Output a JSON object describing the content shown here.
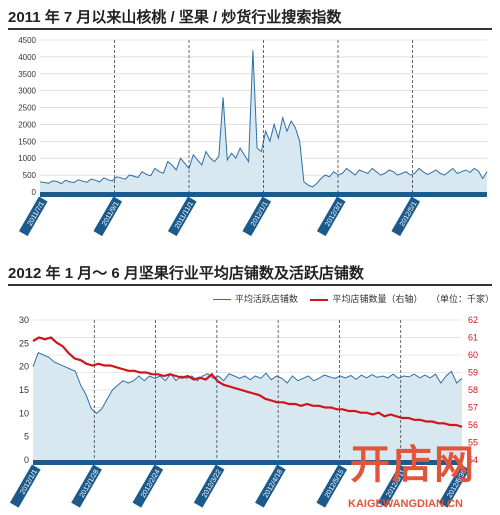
{
  "titles": {
    "chart1": "2011 年 7 月以来山核桃 / 坚果 / 炒货行业搜索指数",
    "chart2": "2012 年 1 月～ 6 月坚果行业平均店铺数及活跃店铺数"
  },
  "legend": {
    "series1": "平均活跃店铺数",
    "series2": "平均店铺数量（右轴）",
    "unit": "（单位：千家）"
  },
  "watermark": {
    "logo": "开店网",
    "url": "KAIGEWANGDIAN.CN"
  },
  "colors": {
    "blue": "#2f6fa5",
    "fill": "#d8e8f0",
    "red": "#d0141c",
    "grid": "#cfcfcf"
  },
  "chart_data": [
    {
      "type": "area",
      "title": "2011 年 7 月以来山核桃 / 坚果 / 炒货行业搜索指数",
      "x_tick_labels": [
        "2011/7/1",
        "2011/9/1",
        "2011/11/1",
        "2012/1/1",
        "2012/3/1",
        "2012/5/1"
      ],
      "y_tick_labels": [
        "0",
        "500",
        "1000",
        "1500",
        "2000",
        "2500",
        "3000",
        "3500",
        "4000",
        "4500"
      ],
      "ylim": [
        0,
        4500
      ],
      "grid": "horizontal",
      "series": [
        {
          "values": [
            300,
            280,
            260,
            330,
            310,
            250,
            350,
            300,
            280,
            360,
            320,
            290,
            380,
            350,
            300,
            420,
            360,
            330,
            450,
            420,
            380,
            500,
            470,
            430,
            600,
            520,
            480,
            700,
            600,
            560,
            900,
            800,
            650,
            1000,
            850,
            700,
            1100,
            950,
            800,
            1200,
            1000,
            900,
            1050,
            2800,
            950,
            1150,
            1000,
            1300,
            1100,
            900,
            4200,
            1300,
            1200,
            1800,
            1500,
            2000,
            1600,
            2200,
            1800,
            2100,
            1900,
            1500,
            300,
            200,
            150,
            250,
            400,
            500,
            450,
            600,
            500,
            550,
            700,
            600,
            500,
            650,
            600,
            550,
            700,
            600,
            500,
            550,
            650,
            600,
            500,
            550,
            600,
            500,
            550,
            700,
            600,
            520,
            580,
            650,
            550,
            500,
            600,
            700,
            550,
            600,
            650,
            580,
            700,
            620,
            400,
            600
          ]
        }
      ]
    },
    {
      "type": "line",
      "title": "2012 年 1 月～ 6 月坚果行业平均店铺数及活跃店铺数",
      "x_tick_labels": [
        "2012/1/1",
        "2012/1/28",
        "2012/2/24",
        "2012/3/22",
        "2012/4/18",
        "2012/5/15",
        "2012/6/11",
        "2012/6/30"
      ],
      "y_tick_labels": [
        "0",
        "5",
        "10",
        "15",
        "20",
        "25",
        "30"
      ],
      "y2_tick_labels": [
        "54",
        "55",
        "56",
        "57",
        "58",
        "59",
        "60",
        "61",
        "62"
      ],
      "ylim": [
        0,
        30
      ],
      "y2lim": [
        54,
        62
      ],
      "grid": "horizontal",
      "series": [
        {
          "name": "平均活跃店铺数",
          "axis": "left",
          "values": [
            20,
            23,
            22.5,
            22,
            21,
            20.5,
            20,
            19.5,
            19,
            16,
            14,
            11,
            10,
            11,
            13,
            15,
            16,
            17,
            16.5,
            17,
            18,
            17,
            18,
            17.5,
            18,
            17,
            18.5,
            17,
            18,
            17.5,
            18,
            17,
            18,
            18.5,
            17.5,
            18,
            17,
            18.5,
            18,
            17.5,
            18,
            17.2,
            18,
            17.5,
            18.6,
            17.2,
            18,
            17.5,
            16.5,
            18,
            17,
            17.5,
            18,
            17,
            17.5,
            18.2,
            17.8,
            17.5,
            18,
            17.6,
            18.1,
            17.3,
            18.2,
            17.6,
            18.3,
            17.7,
            18,
            17.6,
            18.4,
            17.5,
            18,
            17.8,
            18.4,
            17.6,
            18.2,
            17.6,
            18.4,
            16.5,
            18,
            19,
            16.5,
            17.5
          ]
        },
        {
          "name": "平均店铺数量（右轴）",
          "axis": "right",
          "values": [
            60.8,
            61,
            60.9,
            61,
            60.7,
            60.5,
            60.1,
            59.8,
            59.7,
            59.5,
            59.4,
            59.5,
            59.4,
            59.4,
            59.3,
            59.2,
            59.1,
            59.1,
            59.0,
            59.0,
            58.9,
            58.9,
            58.8,
            58.9,
            58.8,
            58.7,
            58.8,
            58.6,
            58.7,
            58.6,
            58.9,
            58.5,
            58.3,
            58.2,
            58.1,
            58.0,
            57.9,
            57.8,
            57.7,
            57.5,
            57.4,
            57.3,
            57.3,
            57.2,
            57.2,
            57.1,
            57.2,
            57.1,
            57.1,
            57.0,
            57.0,
            56.9,
            56.9,
            56.8,
            56.8,
            56.7,
            56.7,
            56.6,
            56.7,
            56.5,
            56.6,
            56.5,
            56.4,
            56.4,
            56.3,
            56.3,
            56.2,
            56.2,
            56.1,
            56.1,
            56.0,
            56.0,
            55.9
          ]
        }
      ]
    }
  ]
}
